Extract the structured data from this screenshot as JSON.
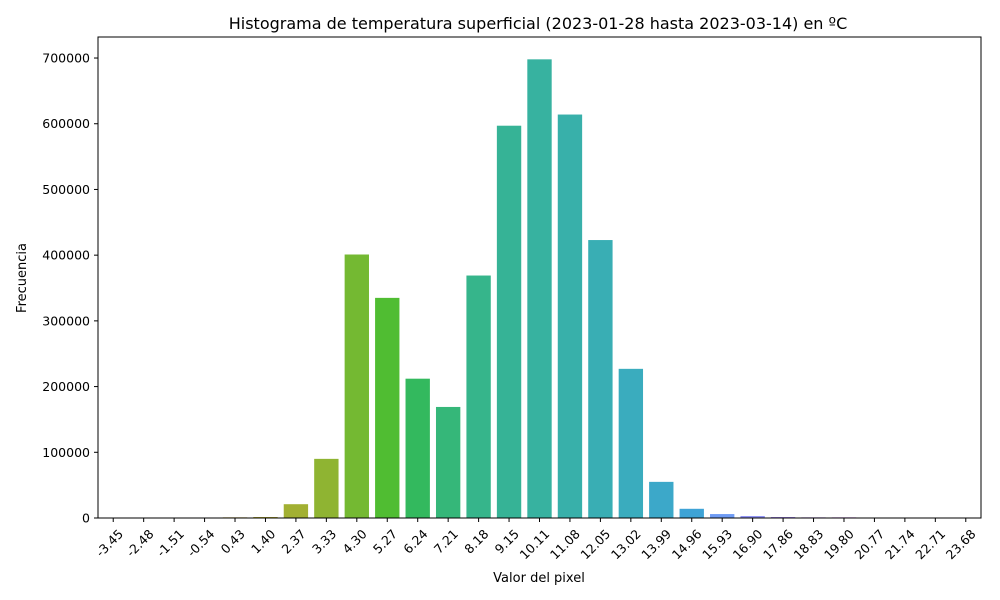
{
  "chart_data": {
    "type": "bar",
    "title": "Histograma de temperatura superficial (2023-01-28 hasta 2023-03-14) en ºC",
    "xlabel": "Valor del pixel",
    "ylabel": "Frecuencia",
    "ylim": [
      0,
      732000
    ],
    "yticks": [
      0,
      100000,
      200000,
      300000,
      400000,
      500000,
      600000,
      700000
    ],
    "ytick_labels": [
      "0",
      "100000",
      "200000",
      "300000",
      "400000",
      "500000",
      "600000",
      "700000"
    ],
    "categories": [
      "-3.45",
      "-2.48",
      "-1.51",
      "-0.54",
      "0.43",
      "1.40",
      "2.37",
      "3.33",
      "4.30",
      "5.27",
      "6.24",
      "7.21",
      "8.18",
      "9.15",
      "10.11",
      "11.08",
      "12.05",
      "13.02",
      "13.99",
      "14.96",
      "15.93",
      "16.90",
      "17.86",
      "18.83",
      "19.80",
      "20.77",
      "21.74",
      "22.71",
      "23.68"
    ],
    "values": [
      0,
      0,
      0,
      0,
      1000,
      1500,
      21000,
      90000,
      401000,
      335000,
      212000,
      169000,
      369000,
      597000,
      698000,
      614000,
      423000,
      227000,
      55000,
      14000,
      6000,
      3000,
      1500,
      1000,
      1000,
      0,
      0,
      0,
      0
    ],
    "colors": [
      "#f77189",
      "#f7754f",
      "#e48c31",
      "#d19c2f",
      "#c2a431",
      "#b3aa32",
      "#a2b032",
      "#8fb432",
      "#74b932",
      "#50bd32",
      "#33b95e",
      "#35b779",
      "#36b58b",
      "#36b396",
      "#37b2a0",
      "#38b0aa",
      "#39aeb4",
      "#3aacbe",
      "#3ca8c9",
      "#3ea3d6",
      "#6e9bf4",
      "#8f92f4",
      "#a789f4",
      "#bb80f4",
      "#d074f4",
      "#e569f0",
      "#f45fe0",
      "#f565c6",
      "#f66bb1"
    ]
  }
}
